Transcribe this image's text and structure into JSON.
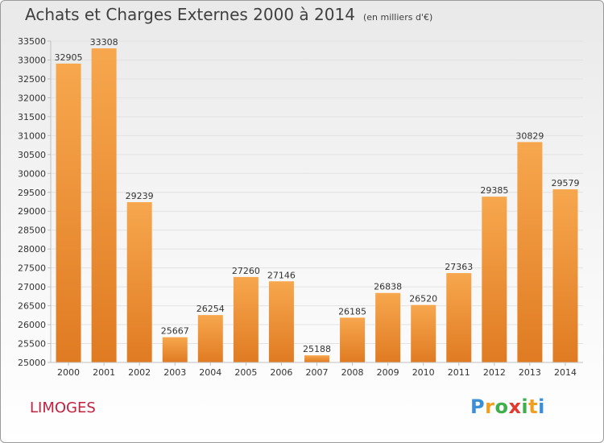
{
  "title": "Achats et Charges Externes 2000 à 2014",
  "subtitle": "(en milliers d'€)",
  "city": "LIMOGES",
  "brand": {
    "text": "Proxiti",
    "letter_colors": [
      "#3b8fd6",
      "#f0a020",
      "#3db04b",
      "#e23a2e",
      "#3db04b",
      "#f0a020",
      "#3b8fd6"
    ]
  },
  "colors": {
    "bar_light": "#f7a74e",
    "bar_dark": "#e07b22",
    "axis": "#c0c0c0",
    "grid": "#e2e2e2",
    "text": "#333333"
  },
  "chart_data": {
    "type": "bar",
    "title": "Achats et Charges Externes 2000 à 2014",
    "subtitle": "(en milliers d'€)",
    "categories": [
      "2000",
      "2001",
      "2002",
      "2003",
      "2004",
      "2005",
      "2006",
      "2007",
      "2008",
      "2009",
      "2010",
      "2011",
      "2012",
      "2013",
      "2014"
    ],
    "values": [
      32905,
      33308,
      29239,
      25667,
      26254,
      27260,
      27146,
      25188,
      26185,
      26838,
      26520,
      27363,
      29385,
      30829,
      29579
    ],
    "ylim": [
      25000,
      33500
    ],
    "ytick_step": 500,
    "grid": true,
    "data_labels": true
  }
}
